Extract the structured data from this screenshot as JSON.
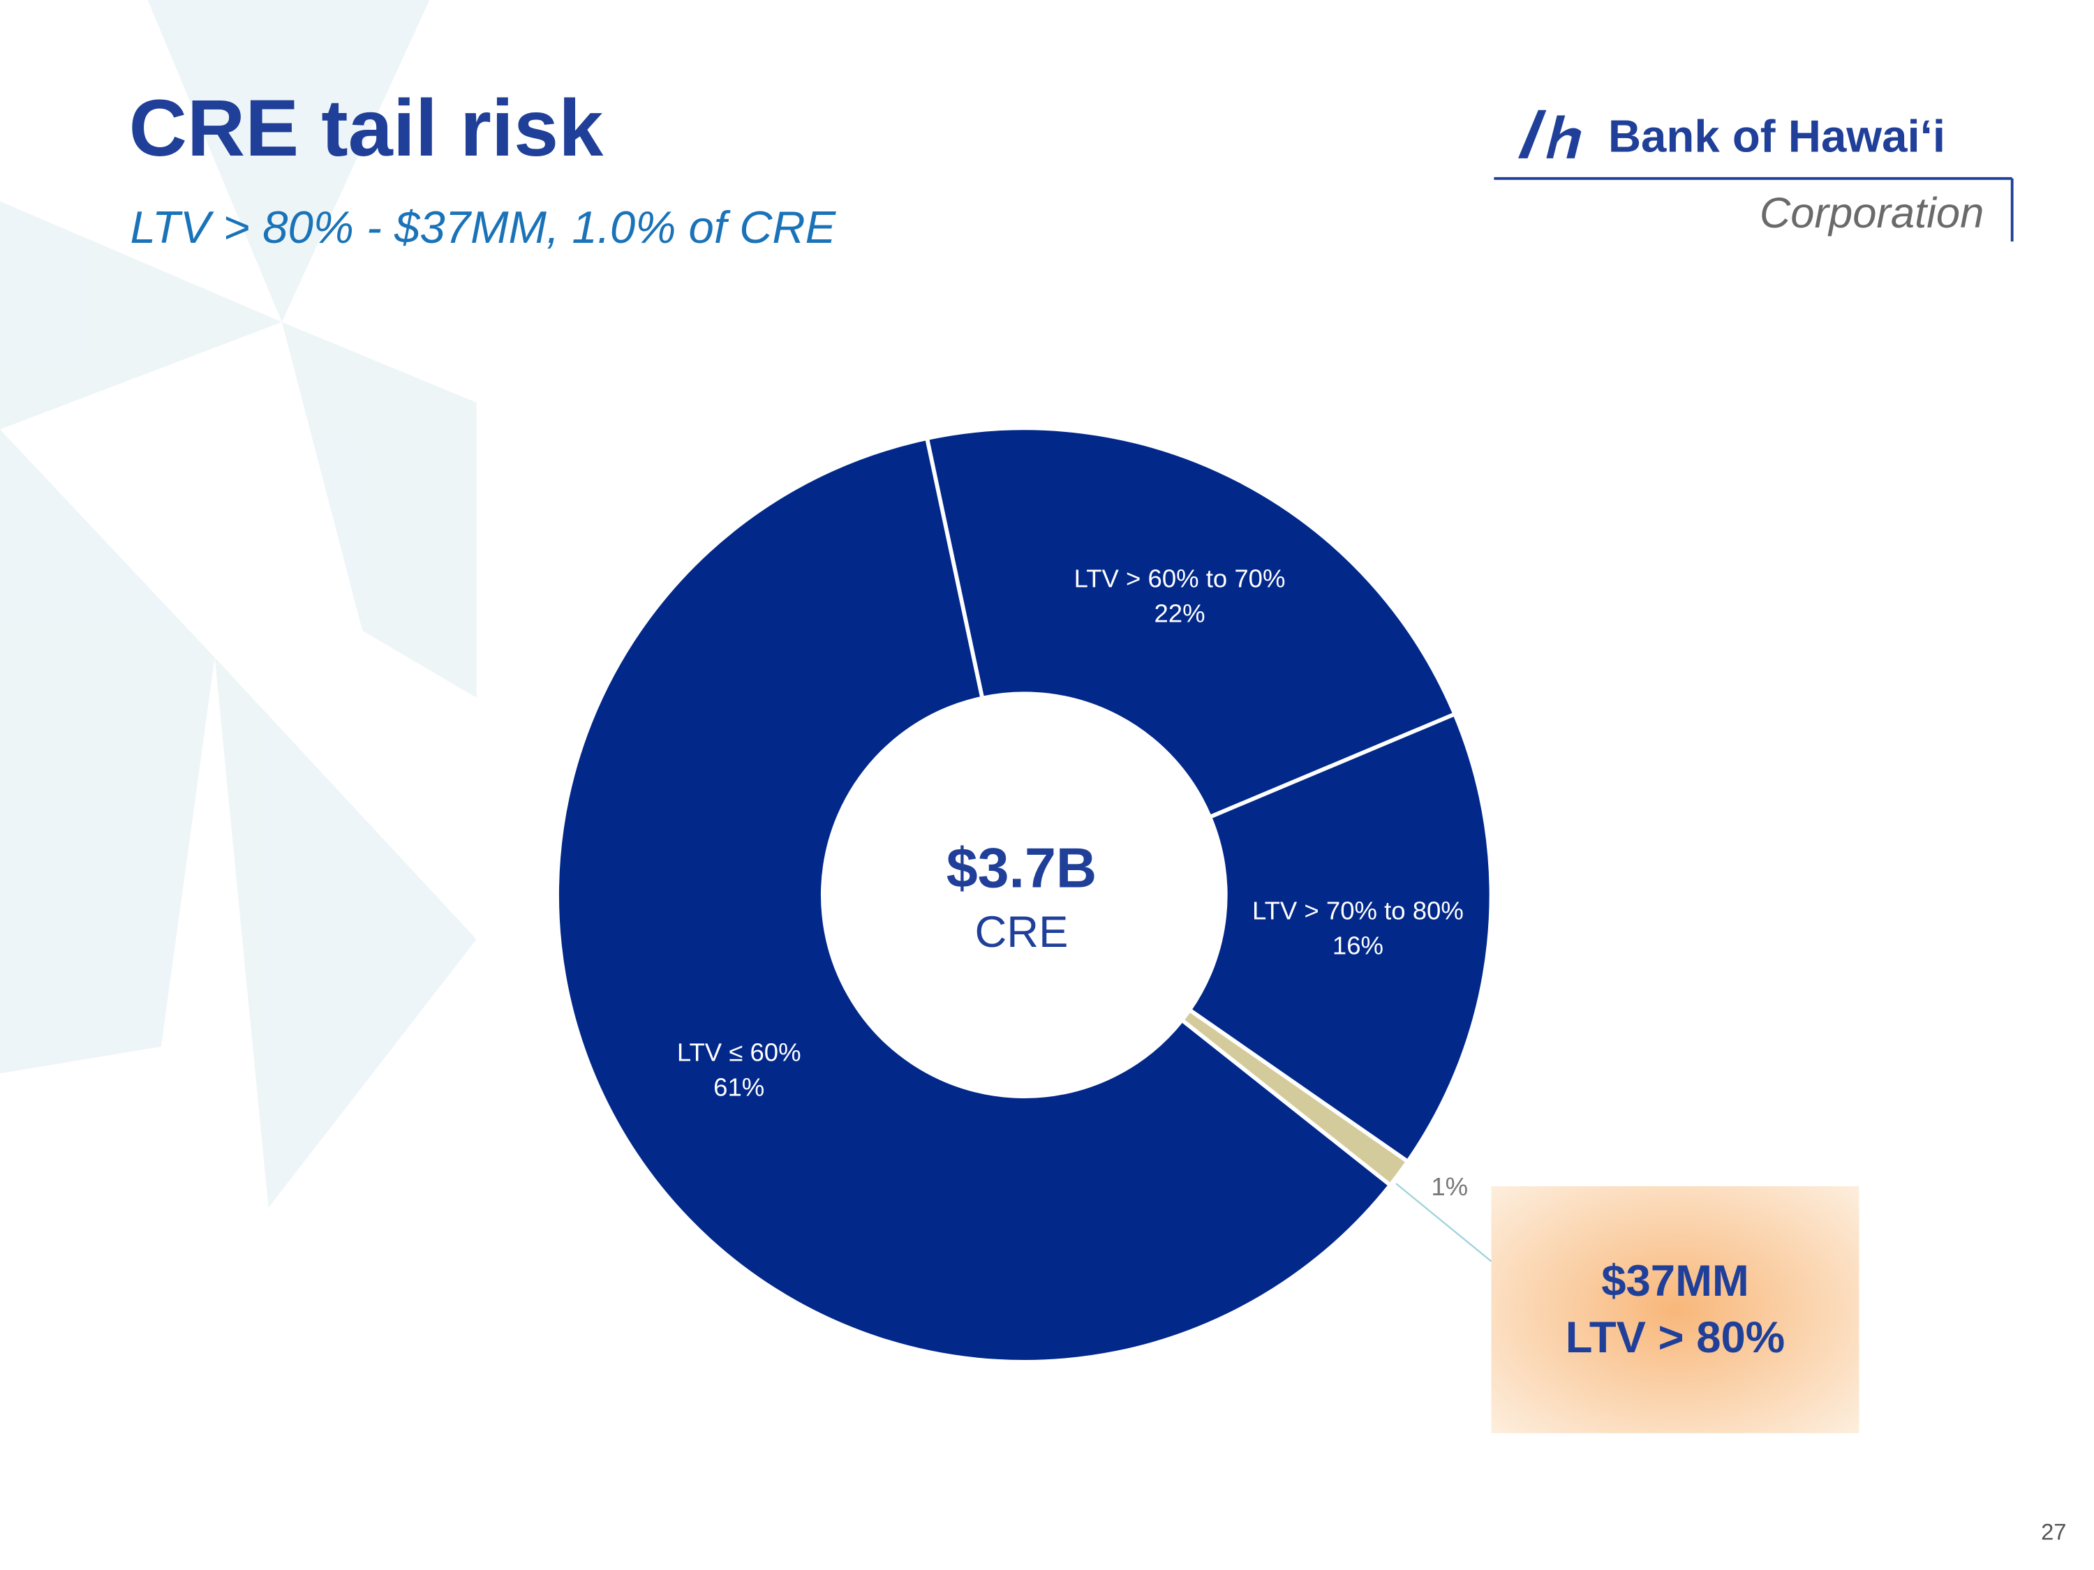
{
  "header": {
    "title": "CRE tail risk",
    "subtitle": "LTV > 80% - $37MM, 1.0% of CRE"
  },
  "logo": {
    "name": "Bank of Hawaiʻi",
    "sub": "Corporation"
  },
  "chart_data": {
    "type": "pie",
    "categories": [
      "LTV ≤ 60%",
      "LTV > 60% to 70%",
      "LTV > 70% to 80%",
      null
    ],
    "values": [
      61,
      22,
      16,
      1
    ],
    "value_labels": [
      "61%",
      "22%",
      "16%",
      "1%"
    ],
    "colors": [
      "#02288a",
      "#02288a",
      "#02288a",
      "#d4cb9c"
    ],
    "center_text": [
      "$3.7B",
      "CRE"
    ],
    "annotation": [
      "$37MM",
      "LTV > 80%"
    ]
  },
  "page_number": "27"
}
